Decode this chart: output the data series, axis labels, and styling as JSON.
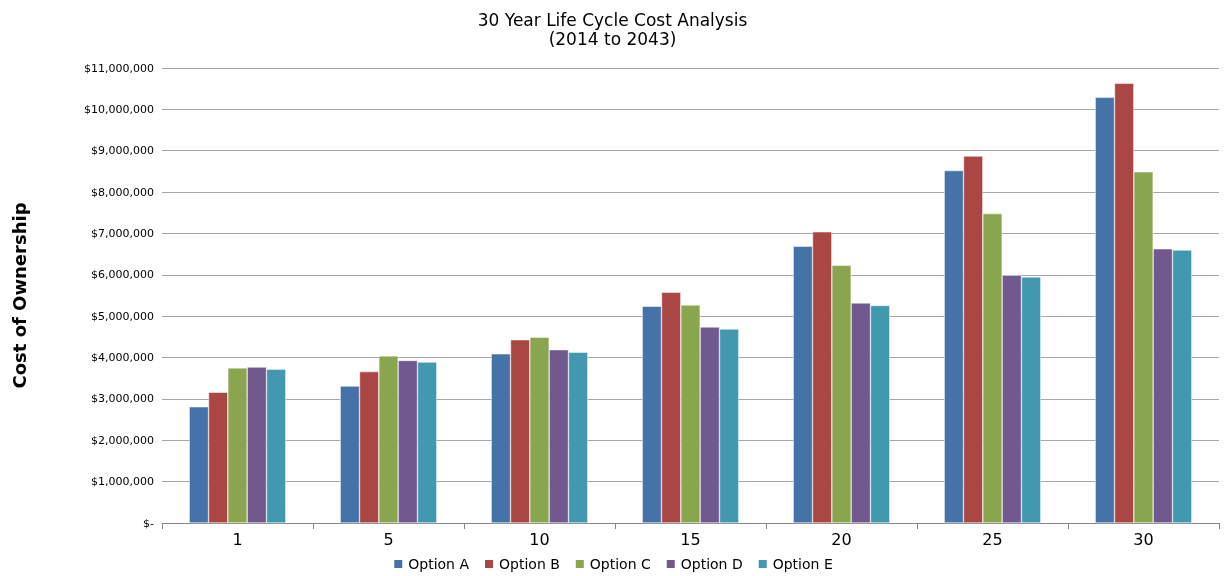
{
  "chart_data": {
    "type": "bar",
    "title": "30 Year Life Cycle Cost Analysis",
    "subtitle": "(2014 to 2043)",
    "ylabel": "Cost of Ownership",
    "categories": [
      "1",
      "5",
      "10",
      "15",
      "20",
      "25",
      "30"
    ],
    "series": [
      {
        "name": "Option A",
        "color": "#4572a7",
        "values": [
          2810000,
          3310000,
          4090000,
          5240000,
          6690000,
          8520000,
          10290000
        ]
      },
      {
        "name": "Option B",
        "color": "#aa4643",
        "values": [
          3160000,
          3660000,
          4430000,
          5580000,
          7040000,
          8870000,
          10630000
        ]
      },
      {
        "name": "Option C",
        "color": "#89a54e",
        "values": [
          3750000,
          4040000,
          4490000,
          5270000,
          6230000,
          7480000,
          8490000
        ]
      },
      {
        "name": "Option D",
        "color": "#71588f",
        "values": [
          3770000,
          3930000,
          4190000,
          4740000,
          5320000,
          5990000,
          6630000
        ]
      },
      {
        "name": "Option E",
        "color": "#4198af",
        "values": [
          3720000,
          3890000,
          4130000,
          4690000,
          5260000,
          5950000,
          6600000
        ]
      }
    ],
    "ylim": [
      0,
      11000000
    ],
    "yticks": [
      {
        "value": 0,
        "label": "$-"
      },
      {
        "value": 1000000,
        "label": "$1,000,000"
      },
      {
        "value": 2000000,
        "label": "$2,000,000"
      },
      {
        "value": 3000000,
        "label": "$3,000,000"
      },
      {
        "value": 4000000,
        "label": "$4,000,000"
      },
      {
        "value": 5000000,
        "label": "$5,000,000"
      },
      {
        "value": 6000000,
        "label": "$6,000,000"
      },
      {
        "value": 7000000,
        "label": "$7,000,000"
      },
      {
        "value": 8000000,
        "label": "$8,000,000"
      },
      {
        "value": 9000000,
        "label": "$9,000,000"
      },
      {
        "value": 10000000,
        "label": "$10,000,000"
      },
      {
        "value": 11000000,
        "label": "$11,000,000"
      }
    ],
    "grid": "y",
    "legend": "bottom"
  }
}
